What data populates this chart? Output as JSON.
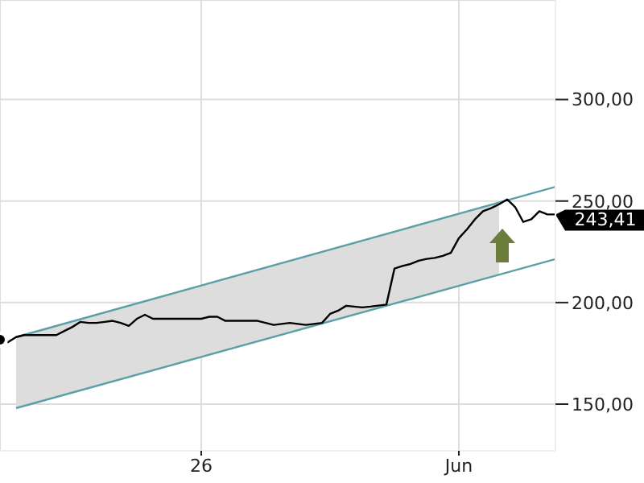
{
  "chart_data": {
    "type": "line",
    "categories": [
      null,
      null,
      null,
      null,
      null,
      null,
      null,
      null,
      null,
      null,
      null,
      null,
      null,
      null,
      null,
      null,
      null,
      null,
      null,
      null,
      null,
      null,
      null,
      null,
      null,
      "26",
      null,
      null,
      null,
      null,
      null,
      null,
      null,
      null,
      null,
      null,
      null,
      null,
      null,
      null,
      null,
      null,
      null,
      null,
      null,
      null,
      null,
      null,
      null,
      null,
      null,
      null,
      null,
      null,
      null,
      null,
      null,
      "Jun",
      null,
      null,
      null,
      null,
      null,
      null,
      null,
      null,
      null,
      null,
      null,
      null
    ],
    "values": [
      181.7,
      180.5,
      183,
      184,
      184,
      184,
      184,
      184,
      186,
      188,
      190.5,
      190,
      190,
      190.5,
      191,
      190,
      188.5,
      192,
      194,
      192,
      192,
      192,
      192,
      192,
      192,
      192,
      193,
      193,
      191,
      191,
      191,
      191,
      191,
      190,
      189,
      189.5,
      190,
      189.5,
      189,
      189.5,
      190,
      194.4,
      196,
      198.4,
      198,
      197.6,
      198,
      198.5,
      199,
      216.7,
      218,
      219,
      220.6,
      221.5,
      222,
      223,
      224.5,
      231.7,
      236,
      241,
      245,
      246.5,
      248.4,
      250.8,
      247,
      239.7,
      241,
      245,
      243.4,
      243.4
    ],
    "lower": [
      null,
      null,
      148.0,
      149.1,
      150.2,
      151.3,
      152.4,
      153.5,
      154.6,
      155.7,
      156.8,
      157.9,
      159.0,
      160.1,
      161.1,
      162.2,
      163.3,
      164.4,
      165.5,
      166.6,
      167.7,
      168.8,
      169.9,
      171.0,
      172.1,
      173.2,
      174.3,
      175.4,
      176.5,
      177.6,
      178.7,
      179.8,
      180.9,
      182.0,
      183.1,
      184.2,
      185.3,
      186.3,
      187.4,
      188.5,
      189.6,
      190.7,
      191.8,
      192.9,
      194.0,
      195.1,
      196.2,
      197.3,
      198.4,
      199.5,
      200.6,
      201.7,
      202.8,
      203.9,
      205.0,
      206.1,
      207.2,
      208.3,
      209.4,
      210.5,
      211.6,
      212.7,
      213.7,
      null,
      null,
      null,
      null,
      null,
      null,
      null
    ],
    "upper": [
      null,
      null,
      183.0,
      184.1,
      185.2,
      186.3,
      187.4,
      188.5,
      189.6,
      190.7,
      191.8,
      192.9,
      194.0,
      195.1,
      196.3,
      197.4,
      198.5,
      199.6,
      200.7,
      201.8,
      202.9,
      204.0,
      205.1,
      206.2,
      207.3,
      208.4,
      209.5,
      210.6,
      211.7,
      212.8,
      213.9,
      215.0,
      216.1,
      217.2,
      218.3,
      219.5,
      220.6,
      221.7,
      222.8,
      223.9,
      225.0,
      226.1,
      227.2,
      228.3,
      229.4,
      230.5,
      231.6,
      232.7,
      233.8,
      234.9,
      236.0,
      237.1,
      238.2,
      239.3,
      240.4,
      241.5,
      242.7,
      243.8,
      244.9,
      246.0,
      247.1,
      248.2,
      249.3,
      null,
      null,
      null,
      null,
      null,
      null,
      null
    ],
    "color": "#000000",
    "series": [
      {
        "type": "line",
        "color": "#5aa0a8",
        "values": [
          null,
          null,
          183,
          null,
          null,
          null,
          null,
          null,
          null,
          null,
          null,
          null,
          null,
          null,
          null,
          null,
          null,
          null,
          null,
          null,
          null,
          null,
          null,
          null,
          null,
          null,
          null,
          null,
          null,
          null,
          null,
          null,
          null,
          null,
          null,
          null,
          null,
          null,
          null,
          null,
          null,
          null,
          null,
          null,
          null,
          null,
          null,
          null,
          null,
          null,
          null,
          null,
          null,
          null,
          null,
          null,
          null,
          null,
          null,
          null,
          null,
          null,
          null,
          null,
          null,
          null,
          null,
          null,
          null,
          257
        ]
      },
      {
        "type": "line",
        "color": "#5aa0a8",
        "values": [
          null,
          null,
          148,
          null,
          null,
          null,
          null,
          null,
          null,
          null,
          null,
          null,
          null,
          null,
          null,
          null,
          null,
          null,
          null,
          null,
          null,
          null,
          null,
          null,
          null,
          null,
          null,
          null,
          null,
          null,
          null,
          null,
          null,
          null,
          null,
          null,
          null,
          null,
          null,
          null,
          null,
          null,
          null,
          null,
          null,
          null,
          null,
          null,
          null,
          null,
          null,
          null,
          null,
          null,
          null,
          null,
          null,
          null,
          null,
          null,
          null,
          null,
          null,
          null,
          null,
          null,
          null,
          null,
          null,
          221.4
        ]
      }
    ],
    "ylim": [
      127,
      349
    ],
    "yticks": [
      {
        "value": 150,
        "label": "150,00"
      },
      {
        "value": 200,
        "label": "200,00"
      },
      {
        "value": 250,
        "label": "250,00"
      },
      {
        "value": 300,
        "label": "300,00"
      }
    ],
    "grid": true,
    "annotations": [
      "243,41"
    ]
  }
}
